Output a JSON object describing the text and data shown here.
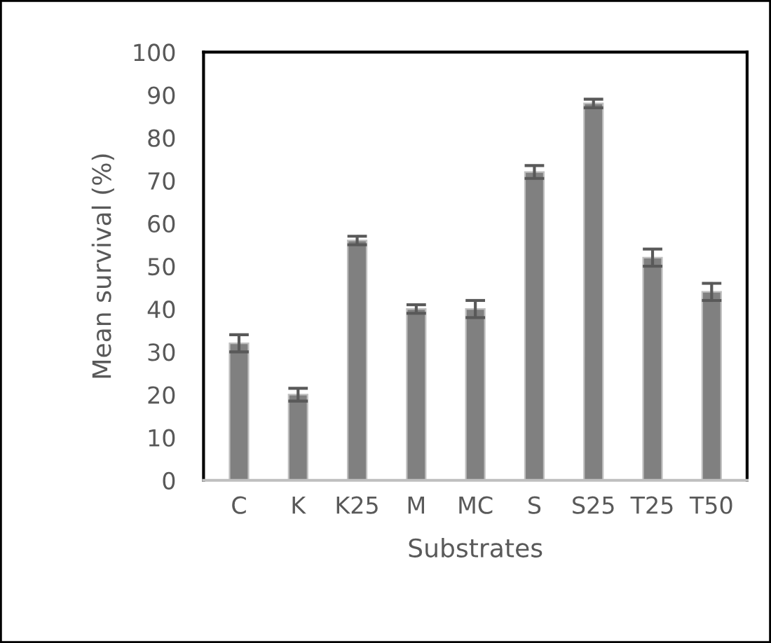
{
  "chart_data": {
    "type": "bar",
    "xlabel": "Substrates",
    "ylabel": "Mean survival (%)",
    "categories": [
      "C",
      "K",
      "K25",
      "M",
      "MC",
      "S",
      "S25",
      "T25",
      "T50"
    ],
    "values": [
      32,
      20,
      56,
      40,
      40,
      72,
      88,
      52,
      44
    ],
    "errors": [
      2,
      1.5,
      1,
      1,
      2,
      1.5,
      1,
      2,
      2
    ],
    "color": "#808080",
    "ylim": [
      0,
      100
    ],
    "yticks": [
      0,
      10,
      20,
      30,
      40,
      50,
      60,
      70,
      80,
      90,
      100
    ],
    "grid": false,
    "legend": false
  }
}
